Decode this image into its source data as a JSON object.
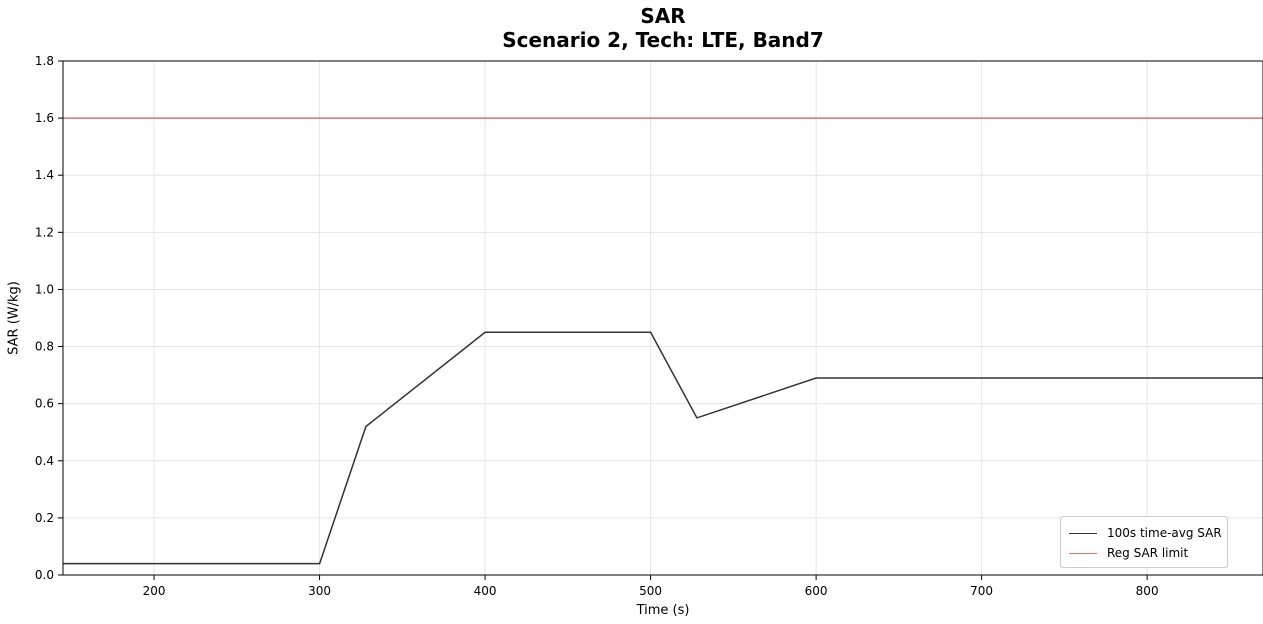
{
  "chart_data": {
    "type": "line",
    "title": "SAR",
    "subtitle": "Scenario 2, Tech: LTE, Band7",
    "xlabel": "Time (s)",
    "ylabel": "SAR (W/kg)",
    "xlim": [
      145,
      870
    ],
    "ylim": [
      0,
      1.8
    ],
    "xticks": [
      200,
      300,
      400,
      500,
      600,
      700,
      800
    ],
    "yticks": [
      0.0,
      0.2,
      0.4,
      0.6,
      0.8,
      1.0,
      1.2,
      1.4,
      1.6,
      1.8
    ],
    "xtick_labels": [
      "200",
      "300",
      "400",
      "500",
      "600",
      "700",
      "800"
    ],
    "ytick_labels": [
      "0.0",
      "0.2",
      "0.4",
      "0.6",
      "0.8",
      "1.0",
      "1.2",
      "1.4",
      "1.6",
      "1.8"
    ],
    "grid": true,
    "legend_position": "lower-right",
    "series": [
      {
        "name": "100s time-avg SAR",
        "color": "#333333",
        "x": [
          145,
          300,
          328,
          400,
          430,
          500,
          528,
          600,
          870
        ],
        "y": [
          0.04,
          0.04,
          0.52,
          0.85,
          0.85,
          0.85,
          0.55,
          0.69,
          0.69
        ]
      },
      {
        "name": "Reg SAR limit",
        "color": "#e07070",
        "x": [
          145,
          870
        ],
        "y": [
          1.6,
          1.6
        ]
      }
    ]
  }
}
